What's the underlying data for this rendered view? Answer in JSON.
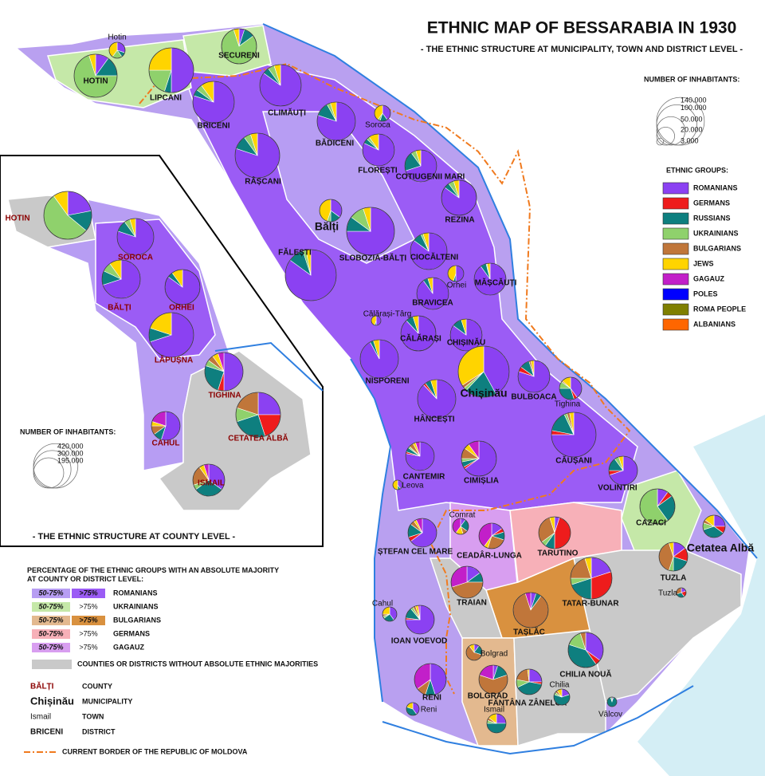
{
  "title": "ETHNIC MAP OF BESSARABIA IN 1930",
  "subtitle": "- THE ETHNIC STRUCTURE AT MUNICIPALITY, TOWN AND DISTRICT LEVEL -",
  "size_legend": {
    "title": "NUMBER OF INHABITANTS:",
    "values": [
      {
        "value": 140000,
        "label": "140.000"
      },
      {
        "value": 100000,
        "label": "100.000"
      },
      {
        "value": 50000,
        "label": "50.000"
      },
      {
        "value": 20000,
        "label": "20.000"
      },
      {
        "value": 3000,
        "label": "3.000"
      }
    ]
  },
  "groups_legend": {
    "title": "ETHNIC GROUPS:",
    "groups": [
      {
        "name": "ROMANIANS",
        "color": "#8b41f2"
      },
      {
        "name": "GERMANS",
        "color": "#ee1c1c"
      },
      {
        "name": "RUSSIANS",
        "color": "#0e7f7f"
      },
      {
        "name": "UKRAINIANS",
        "color": "#8fd16c"
      },
      {
        "name": "BULGARIANS",
        "color": "#c0763a"
      },
      {
        "name": "JEWS",
        "color": "#ffd400"
      },
      {
        "name": "GAGAUZ",
        "color": "#c21fc9"
      },
      {
        "name": "POLES",
        "color": "#0000ff"
      },
      {
        "name": "ROMA PEOPLE",
        "color": "#7f7f00"
      },
      {
        "name": "ALBANIANS",
        "color": "#ff6600"
      }
    ]
  },
  "places": [
    {
      "label": "Hotin",
      "shares": [
        30,
        0,
        10,
        20,
        0,
        40,
        0
      ]
    },
    {
      "label": "HOTIN",
      "shares": [
        10,
        0,
        15,
        70,
        0,
        5,
        0
      ]
    },
    {
      "label": "SECURENI",
      "shares": [
        5,
        0,
        10,
        80,
        0,
        5,
        0
      ]
    },
    {
      "label": "LIPCANI",
      "shares": [
        50,
        0,
        5,
        20,
        0,
        25,
        0
      ]
    },
    {
      "label": "BRICENI",
      "shares": [
        80,
        0,
        5,
        5,
        0,
        10,
        0
      ]
    },
    {
      "label": "CLIMĂUȚI",
      "shares": [
        85,
        0,
        5,
        5,
        0,
        5,
        0
      ]
    },
    {
      "label": "BĂDICENI",
      "shares": [
        80,
        0,
        12,
        3,
        0,
        5,
        0
      ]
    },
    {
      "label": "Soroca",
      "shares": [
        40,
        0,
        15,
        5,
        0,
        40,
        0
      ]
    },
    {
      "label": "FLOREȘTI",
      "shares": [
        82,
        0,
        5,
        3,
        0,
        10,
        0
      ]
    },
    {
      "label": "COTIUGENII MARI",
      "shares": [
        70,
        0,
        20,
        5,
        0,
        5,
        0
      ]
    },
    {
      "label": "RÂȘCANI",
      "shares": [
        80,
        0,
        10,
        5,
        0,
        5,
        0
      ]
    },
    {
      "label": "REZINA",
      "shares": [
        85,
        0,
        5,
        5,
        0,
        5,
        0
      ]
    },
    {
      "label": "Bălți",
      "shares": [
        35,
        0,
        15,
        5,
        0,
        45,
        0
      ]
    },
    {
      "label": "SLOBOZIA-BĂLȚI",
      "shares": [
        75,
        0,
        10,
        10,
        0,
        5,
        0
      ]
    },
    {
      "label": "FĂLEȘTI",
      "shares": [
        85,
        0,
        10,
        2,
        0,
        3,
        0
      ]
    },
    {
      "label": "CIOCĂLTENI",
      "shares": [
        85,
        0,
        8,
        2,
        0,
        5,
        0
      ]
    },
    {
      "label": "MĂȘCĂUȚI",
      "shares": [
        90,
        0,
        6,
        1,
        0,
        3,
        0
      ]
    },
    {
      "label": "Orhei",
      "shares": [
        50,
        0,
        5,
        0,
        0,
        45,
        0
      ]
    },
    {
      "label": "BRAVICEA",
      "shares": [
        90,
        0,
        5,
        0,
        0,
        5,
        0
      ]
    },
    {
      "label": "Călărași-Târg",
      "shares": [
        50,
        0,
        5,
        0,
        0,
        45,
        0
      ]
    },
    {
      "label": "CĂLĂRAȘI",
      "shares": [
        88,
        0,
        7,
        0,
        0,
        5,
        0
      ]
    },
    {
      "label": "CHIȘINĂU",
      "shares": [
        85,
        0,
        10,
        0,
        0,
        5,
        0
      ]
    },
    {
      "label": "NISPORENI",
      "shares": [
        92,
        0,
        3,
        0,
        0,
        5,
        0
      ]
    },
    {
      "label": "Chișinău",
      "shares": [
        42,
        0,
        20,
        2,
        2,
        34,
        0
      ]
    },
    {
      "label": "BULBOACA",
      "shares": [
        80,
        5,
        10,
        0,
        2,
        3,
        0
      ]
    },
    {
      "label": "Tighina",
      "shares": [
        40,
        5,
        30,
        10,
        2,
        13,
        0
      ]
    },
    {
      "label": "HÂNCEȘTI",
      "shares": [
        88,
        2,
        5,
        0,
        0,
        5,
        0
      ]
    },
    {
      "label": "CĂUȘANI",
      "shares": [
        75,
        3,
        15,
        2,
        2,
        3,
        0
      ]
    },
    {
      "label": "CANTEMIR",
      "shares": [
        78,
        2,
        5,
        2,
        5,
        3,
        5
      ]
    },
    {
      "label": "CIMIȘLIA",
      "shares": [
        65,
        2,
        5,
        3,
        10,
        5,
        10
      ]
    },
    {
      "label": "Leova",
      "shares": [
        40,
        0,
        10,
        0,
        0,
        50,
        0
      ]
    },
    {
      "label": "VOLINTIRI",
      "shares": [
        70,
        5,
        15,
        5,
        0,
        5,
        0
      ]
    },
    {
      "label": "CAZACI",
      "shares": [
        10,
        5,
        25,
        60,
        0,
        0,
        0
      ]
    },
    {
      "label": "Comrat",
      "shares": [
        10,
        0,
        25,
        0,
        10,
        15,
        40
      ]
    },
    {
      "label": "CEADÂR-LUNGA",
      "shares": [
        15,
        5,
        10,
        0,
        25,
        5,
        40
      ]
    },
    {
      "label": "TARUTINO",
      "shares": [
        5,
        45,
        10,
        5,
        30,
        5,
        0
      ]
    },
    {
      "label": "ȘTEFAN CEL MARE",
      "shares": [
        65,
        5,
        15,
        0,
        5,
        3,
        7
      ]
    },
    {
      "label": "Cetatea Albă",
      "shares": [
        25,
        10,
        35,
        10,
        5,
        15,
        0
      ]
    },
    {
      "label": "TUZLA",
      "shares": [
        15,
        15,
        20,
        5,
        40,
        5,
        0
      ]
    },
    {
      "label": "TRAIAN",
      "shares": [
        15,
        0,
        10,
        0,
        45,
        0,
        30
      ]
    },
    {
      "label": "TATAR-BUNAR",
      "shares": [
        20,
        30,
        20,
        5,
        20,
        5,
        0
      ]
    },
    {
      "label": "Tuzla",
      "shares": [
        20,
        20,
        30,
        0,
        30,
        0,
        0
      ]
    },
    {
      "label": "Cahul",
      "shares": [
        40,
        0,
        25,
        5,
        5,
        25,
        0
      ]
    },
    {
      "label": "IOAN VOEVOD",
      "shares": [
        75,
        2,
        12,
        3,
        3,
        3,
        2
      ]
    },
    {
      "label": "TAȘLĂC",
      "shares": [
        5,
        0,
        5,
        0,
        85,
        0,
        5
      ]
    },
    {
      "label": "Bolgrad",
      "shares": [
        10,
        0,
        20,
        0,
        60,
        10,
        0
      ]
    },
    {
      "label": "BOLGRAD",
      "shares": [
        5,
        0,
        15,
        0,
        60,
        0,
        20
      ]
    },
    {
      "label": "CHILIA NOUĂ",
      "shares": [
        35,
        5,
        40,
        15,
        5,
        0,
        0
      ]
    },
    {
      "label": "RENI",
      "shares": [
        45,
        0,
        10,
        0,
        10,
        0,
        35
      ]
    },
    {
      "label": "FÂNTÂNA ZÂNELOR",
      "shares": [
        25,
        3,
        40,
        10,
        20,
        2,
        0
      ]
    },
    {
      "label": "Chilia",
      "shares": [
        20,
        0,
        60,
        5,
        5,
        10,
        0
      ]
    },
    {
      "label": "Ismail",
      "shares": [
        25,
        0,
        50,
        5,
        5,
        15,
        0
      ]
    },
    {
      "label": "Reni",
      "shares": [
        40,
        0,
        40,
        0,
        0,
        20,
        0
      ]
    },
    {
      "label": "Vâlcov",
      "shares": [
        5,
        0,
        90,
        5,
        0,
        0,
        0
      ]
    }
  ],
  "inset": {
    "title": "- THE ETHNIC STRUCTURE AT COUNTY LEVEL -",
    "size_title": "NUMBER OF INHABITANTS:",
    "size_values": [
      {
        "value": 420000,
        "label": "420.000"
      },
      {
        "value": 300000,
        "label": "300.000"
      },
      {
        "value": 195000,
        "label": "195.000"
      }
    ],
    "counties": [
      {
        "label": "HOTIN",
        "shares": [
          22,
          0,
          14,
          54,
          0,
          10,
          0
        ]
      },
      {
        "label": "SOROCA",
        "shares": [
          80,
          0,
          10,
          5,
          0,
          5,
          0
        ]
      },
      {
        "label": "BĂLȚI",
        "shares": [
          70,
          0,
          12,
          8,
          0,
          10,
          0
        ]
      },
      {
        "label": "ORHEI",
        "shares": [
          85,
          0,
          5,
          0,
          0,
          10,
          0
        ]
      },
      {
        "label": "LĂPUȘNA",
        "shares": [
          70,
          0,
          10,
          0,
          0,
          20,
          0
        ]
      },
      {
        "label": "TIGHINA",
        "shares": [
          50,
          5,
          25,
          5,
          5,
          5,
          5
        ]
      },
      {
        "label": "CAHUL",
        "shares": [
          55,
          0,
          10,
          0,
          10,
          5,
          20
        ]
      },
      {
        "label": "CETATEA ALBĂ",
        "shares": [
          25,
          20,
          25,
          10,
          20,
          0,
          0
        ]
      },
      {
        "label": "ISMAIL",
        "shares": [
          35,
          0,
          30,
          5,
          20,
          5,
          5
        ]
      }
    ]
  },
  "majority_legend": {
    "title": "PERCENTAGE OF THE ETHNIC GROUPS WITH AN ABSOLUTE MAJORITY AT COUNTY OR DISTRICT LEVEL:",
    "rows": [
      {
        "low": "50-75%",
        "high": ">75%",
        "group": "ROMANIANS",
        "colors": [
          "#b79df3",
          "#9b5cf5"
        ]
      },
      {
        "low": "50-75%",
        "high": ">75%",
        "group": "UKRAINIANS",
        "colors": [
          "#c5e8a8"
        ]
      },
      {
        "low": "50-75%",
        "high": ">75%",
        "group": "BULGARIANS",
        "colors": [
          "#e3b98f",
          "#d9913f"
        ]
      },
      {
        "low": "50-75%",
        "high": ">75%",
        "group": "GERMANS",
        "colors": [
          "#f7b0b8"
        ]
      },
      {
        "low": "50-75%",
        "high": ">75%",
        "group": "GAGAUZ",
        "colors": [
          "#d89ef0"
        ]
      }
    ],
    "none": "COUNTIES OR DISTRICTS WITHOUT ABSOLUTE ETHNIC MAJORITIES"
  },
  "type_legend": [
    {
      "sample": "BĂLȚI",
      "meaning": "COUNTY"
    },
    {
      "sample": "Chișinău",
      "meaning": "MUNICIPALITY"
    },
    {
      "sample": "Ismail",
      "meaning": "TOWN"
    },
    {
      "sample": "BRICENI",
      "meaning": "DISTRICT"
    }
  ],
  "border_legend": "CURRENT BORDER OF THE REPUBLIC OF MOLDOVA"
}
